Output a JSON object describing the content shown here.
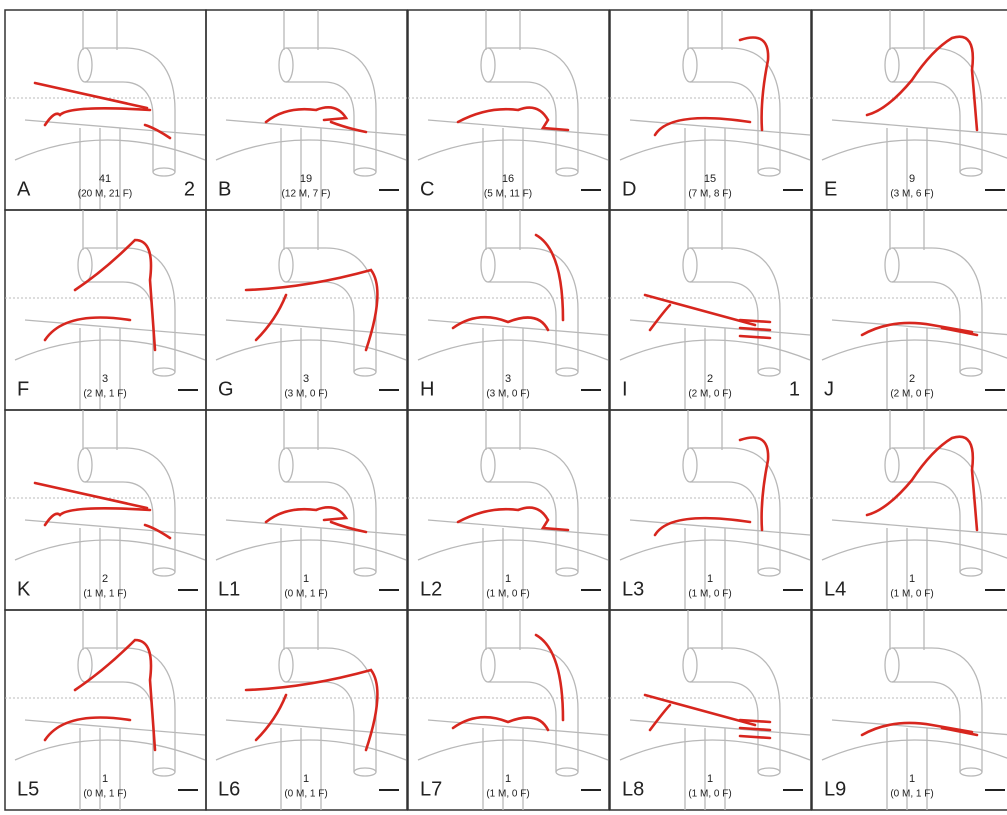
{
  "panels": [
    {
      "label": "A",
      "count": "41",
      "breakdown": "(20 M, 21 F)",
      "side_note": "2"
    },
    {
      "label": "B",
      "count": "19",
      "breakdown": "(12 M, 7 F)"
    },
    {
      "label": "C",
      "count": "16",
      "breakdown": "(5 M, 11 F)"
    },
    {
      "label": "D",
      "count": "15",
      "breakdown": "(7 M, 8 F)"
    },
    {
      "label": "E",
      "count": "9",
      "breakdown": "(3 M, 6 F)"
    },
    {
      "label": "F",
      "count": "3",
      "breakdown": "(2 M, 1 F)"
    },
    {
      "label": "G",
      "count": "3",
      "breakdown": "(3 M, 0 F)"
    },
    {
      "label": "H",
      "count": "3",
      "breakdown": "(3 M, 0 F)"
    },
    {
      "label": "I",
      "count": "2",
      "breakdown": "(2 M, 0 F)",
      "side_note": "1"
    },
    {
      "label": "J",
      "count": "2",
      "breakdown": "(2 M, 0 F)"
    },
    {
      "label": "K",
      "count": "2",
      "breakdown": "(1 M, 1 F)"
    },
    {
      "label": "L1",
      "count": "1",
      "breakdown": "(0 M, 1 F)"
    },
    {
      "label": "L2",
      "count": "1",
      "breakdown": "(1 M, 0 F)"
    },
    {
      "label": "L3",
      "count": "1",
      "breakdown": "(1 M, 0 F)"
    },
    {
      "label": "L4",
      "count": "1",
      "breakdown": "(1 M, 0 F)"
    },
    {
      "label": "L5",
      "count": "1",
      "breakdown": "(0 M, 1 F)"
    },
    {
      "label": "L6",
      "count": "1",
      "breakdown": "(0 M, 1 F)"
    },
    {
      "label": "L7",
      "count": "1",
      "breakdown": "(1 M, 0 F)"
    },
    {
      "label": "L8",
      "count": "1",
      "breakdown": "(1 M, 0 F)"
    },
    {
      "label": "L9",
      "count": "1",
      "breakdown": "(0 M, 1 F)"
    }
  ]
}
